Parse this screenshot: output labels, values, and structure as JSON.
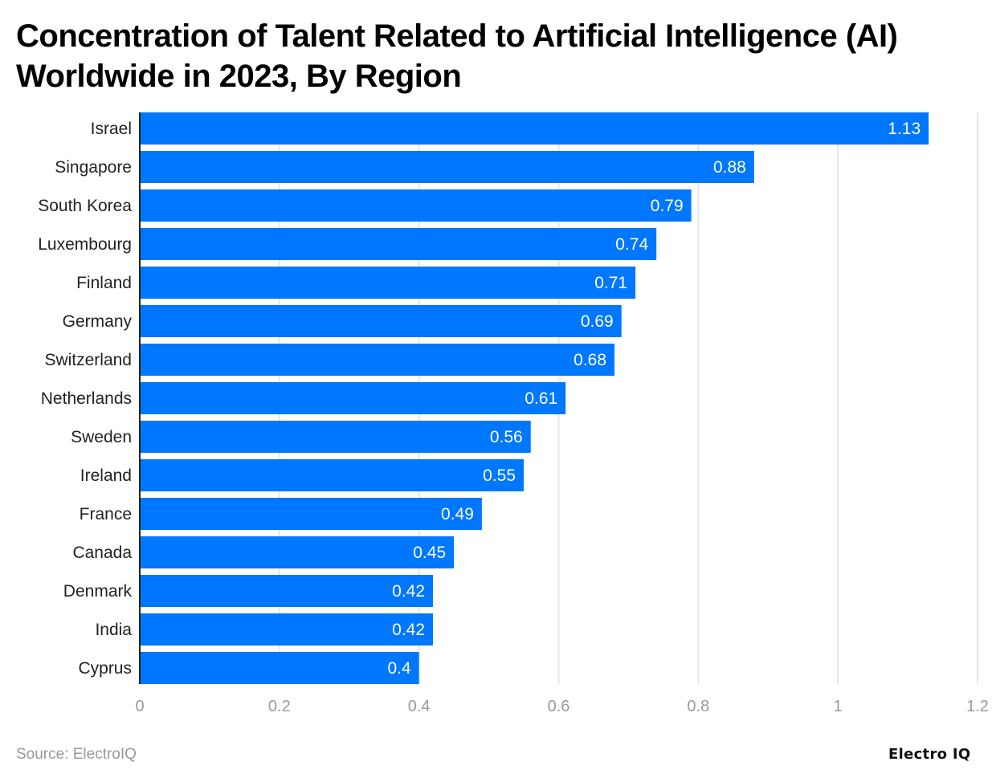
{
  "title": "Concentration of Talent Related to Artificial Intelligence (AI) Worldwide in 2023, By Region",
  "source": "Source: ElectroIQ",
  "logo": "Electro IQ",
  "colors": {
    "bar": "#0077FF",
    "grid": "#e6e6e6",
    "tick_label": "#9a9a9a"
  },
  "chart_data": {
    "type": "bar",
    "orientation": "horizontal",
    "title": "Concentration of Talent Related to Artificial Intelligence (AI) Worldwide in 2023, By Region",
    "categories": [
      "Israel",
      "Singapore",
      "South Korea",
      "Luxembourg",
      "Finland",
      "Germany",
      "Switzerland",
      "Netherlands",
      "Sweden",
      "Ireland",
      "France",
      "Canada",
      "Denmark",
      "India",
      "Cyprus"
    ],
    "values": [
      1.13,
      0.88,
      0.79,
      0.74,
      0.71,
      0.69,
      0.68,
      0.61,
      0.56,
      0.55,
      0.49,
      0.45,
      0.42,
      0.42,
      0.4
    ],
    "value_labels": [
      "1.13",
      "0.88",
      "0.79",
      "0.74",
      "0.71",
      "0.69",
      "0.68",
      "0.61",
      "0.56",
      "0.55",
      "0.49",
      "0.45",
      "0.42",
      "0.42",
      "0.4"
    ],
    "xlim": [
      0,
      1.2
    ],
    "xticks": [
      "0",
      "0.2",
      "0.4",
      "0.6",
      "0.8",
      "1",
      "1.2"
    ],
    "xlabel": "",
    "ylabel": "",
    "grid": true
  }
}
